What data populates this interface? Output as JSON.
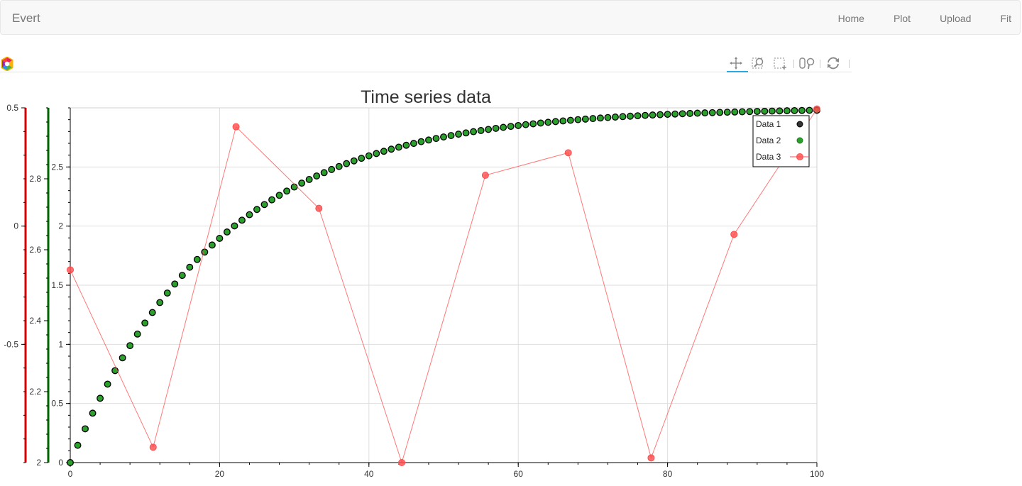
{
  "navbar": {
    "brand": "Evert",
    "links": [
      "Home",
      "Plot",
      "Upload",
      "Fit"
    ]
  },
  "toolbar": {
    "tools": [
      "pan-icon",
      "wheel-zoom-icon",
      "box-zoom-icon",
      "resize-icon",
      "reset-icon"
    ]
  },
  "colors": {
    "data1": "#000000",
    "data2": "#2ca02c",
    "data3": "#ff4b4b",
    "axis_red": "#dd0000",
    "axis_green": "#006400"
  },
  "chart_data": {
    "type": "scatter",
    "title": "Time series data",
    "x": {
      "range": [
        0,
        100
      ],
      "ticks": [
        "0",
        "20",
        "40",
        "60",
        "80",
        "100"
      ]
    },
    "y_left_red": {
      "range": [
        -1,
        0.5
      ],
      "ticks": [
        "-0.5",
        "0",
        "0.5"
      ]
    },
    "y_left_green": {
      "range": [
        2,
        3
      ],
      "ticks": [
        "2",
        "2.2",
        "2.4",
        "2.6",
        "2.8"
      ]
    },
    "y_main": {
      "range": [
        0,
        3
      ],
      "ticks": [
        "0",
        "0.5",
        "1",
        "1.5",
        "2",
        "2.5"
      ]
    },
    "grid": true,
    "legend": {
      "placement": "top-right",
      "entries": [
        "Data 1",
        "Data 2",
        "Data 3"
      ]
    },
    "series": [
      {
        "name": "Data 1",
        "style": "circles",
        "formula": "3*(1-exp(-x/20))",
        "x_start": 0,
        "x_end": 100,
        "x_step": 1
      },
      {
        "name": "Data 2",
        "style": "circles",
        "formula": "3*(1-exp(-x/20))",
        "x_start": 0,
        "x_end": 100,
        "x_step": 1
      },
      {
        "name": "Data 3",
        "style": "line+circles",
        "x": [
          0,
          11.1,
          22.2,
          33.3,
          44.4,
          55.6,
          66.7,
          77.8,
          88.9,
          100
        ],
        "y": [
          1.63,
          0.13,
          2.84,
          2.15,
          0.0,
          2.43,
          2.62,
          0.04,
          1.93,
          2.99
        ]
      }
    ]
  }
}
